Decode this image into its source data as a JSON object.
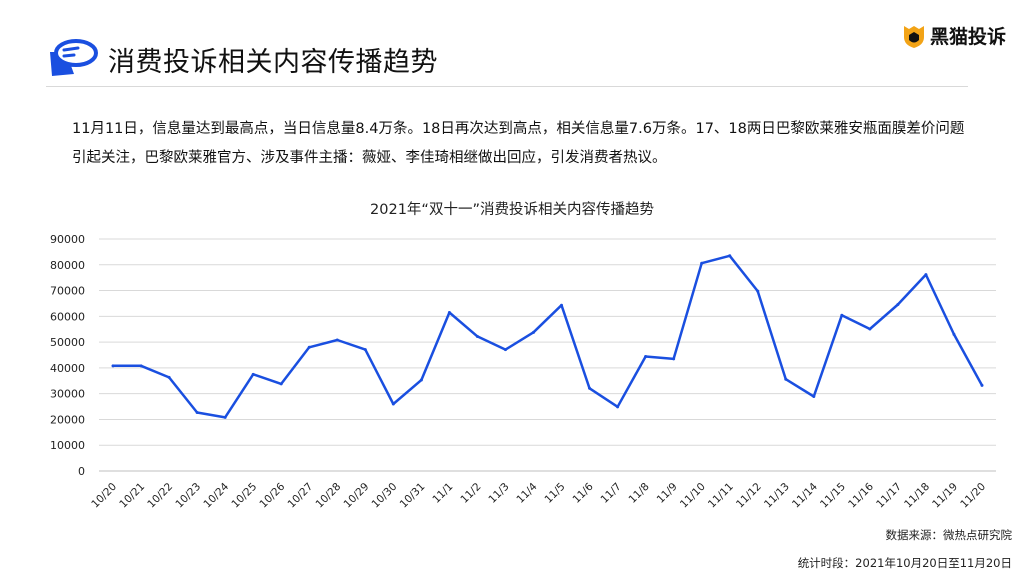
{
  "header": {
    "title": "消费投诉相关内容传播趋势",
    "brand_name": "黑猫投诉",
    "icon": "chat-bubble-icon",
    "brand_icon": "black-cat-shield-icon"
  },
  "summary": {
    "text": "11月11日，信息量达到最高点，当日信息量8.4万条。18日再次达到高点，相关信息量7.6万条。17、18两日巴黎欧莱雅安瓶面膜差价问题引起关注，巴黎欧莱雅官方、涉及事件主播：薇娅、李佳琦相继做出回应，引发消费者热议。"
  },
  "footer": {
    "source": "数据来源：微热点研究院",
    "period": "统计时段：2021年10月20日至11月20日"
  },
  "colors": {
    "line": "#1a4fe0",
    "grid": "#d9d9d9",
    "brand_icon": "#f2a316"
  },
  "chart_data": {
    "type": "line",
    "title": "2021年“双十一”消费投诉相关内容传播趋势",
    "categories": [
      "10/20",
      "10/21",
      "10/22",
      "10/23",
      "10/24",
      "10/25",
      "10/26",
      "10/27",
      "10/28",
      "10/29",
      "10/30",
      "10/31",
      "11/1",
      "11/2",
      "11/3",
      "11/4",
      "11/5",
      "11/6",
      "11/7",
      "11/8",
      "11/9",
      "11/10",
      "11/11",
      "11/12",
      "11/13",
      "11/14",
      "11/15",
      "11/16",
      "11/17",
      "11/18",
      "11/19",
      "11/20"
    ],
    "values": [
      40800,
      40800,
      36300,
      22700,
      20800,
      37500,
      33800,
      48000,
      50800,
      47100,
      26000,
      35300,
      61500,
      52200,
      47100,
      53800,
      64300,
      32100,
      24900,
      44400,
      43500,
      80600,
      83500,
      69800,
      35600,
      28900,
      60400,
      55100,
      64600,
      76200,
      53000,
      33200
    ],
    "yticks": [
      0,
      10000,
      20000,
      30000,
      40000,
      50000,
      60000,
      70000,
      80000,
      90000
    ],
    "ylim": [
      0,
      90000
    ],
    "grid": true
  }
}
